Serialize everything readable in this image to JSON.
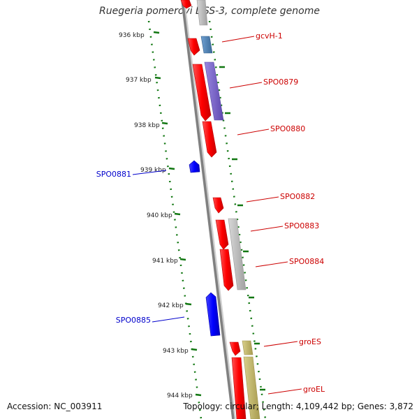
{
  "title": "Ruegeria pomeroyi DSS-3, complete genome",
  "footer": {
    "accession": "Accession: NC_003911",
    "topology": "Topology: circular; Length: 4,109,442 bp; Genes: 3,872"
  },
  "ruler_labels": [
    "936 kbp",
    "937 kbp",
    "938 kbp",
    "939 kbp",
    "940 kbp",
    "941 kbp",
    "942 kbp",
    "943 kbp",
    "944 kbp"
  ],
  "gene_labels": [
    {
      "id": "gcvh1",
      "text": "gcvH-1",
      "strand": "forward"
    },
    {
      "id": "spo0879",
      "text": "SPO0879",
      "strand": "forward"
    },
    {
      "id": "spo0880",
      "text": "SPO0880",
      "strand": "forward"
    },
    {
      "id": "spo0881",
      "text": "SPO0881",
      "strand": "reverse"
    },
    {
      "id": "spo0882",
      "text": "SPO0882",
      "strand": "forward"
    },
    {
      "id": "spo0883",
      "text": "SPO0883",
      "strand": "forward"
    },
    {
      "id": "spo0884",
      "text": "SPO0884",
      "strand": "forward"
    },
    {
      "id": "spo0885",
      "text": "SPO0885",
      "strand": "reverse"
    },
    {
      "id": "groes",
      "text": "groES",
      "strand": "forward"
    },
    {
      "id": "groel",
      "text": "groEL",
      "strand": "forward"
    }
  ],
  "colors": {
    "forward_gene": "#ee0000",
    "reverse_gene": "#0000ee",
    "forward_label": "#cc0000",
    "reverse_label": "#0000cc",
    "backbone": "#888888",
    "ruler": "#117711",
    "cog_blue": "#4a7fb5",
    "cog_purple": "#7a63c8",
    "cog_gray": "#bbbbbb",
    "cog_olive": "#bfb46a"
  }
}
